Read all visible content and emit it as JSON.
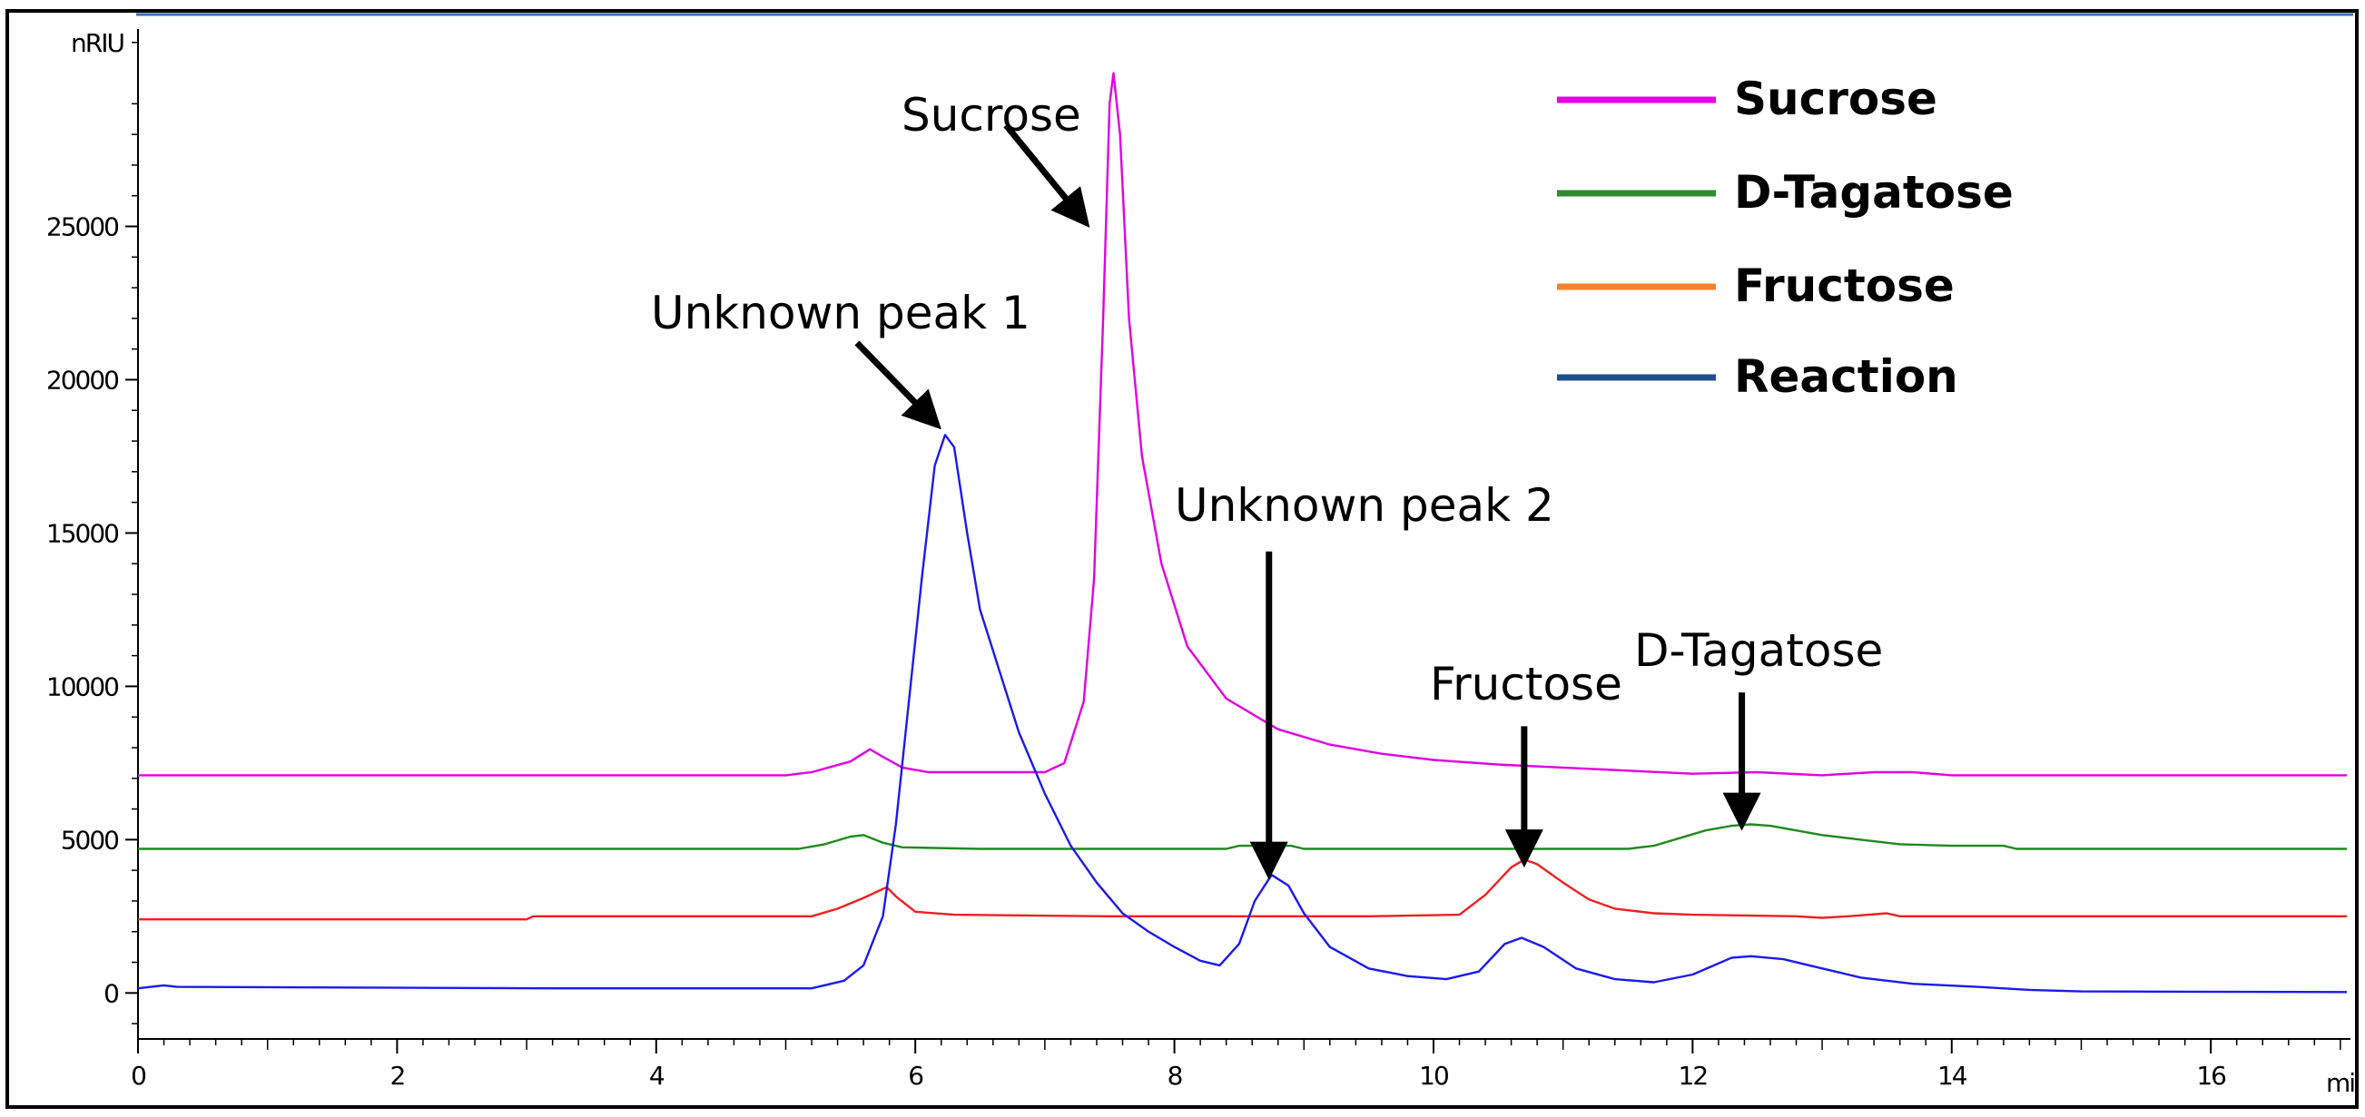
{
  "chart_data": {
    "type": "line",
    "xlabel_unit": "mi",
    "ylabel_unit": "nRIU",
    "xlim": [
      0,
      17.05
    ],
    "ylim": [
      -1500,
      31200
    ],
    "x_ticks": [
      0,
      2,
      4,
      6,
      8,
      10,
      12,
      14,
      16
    ],
    "y_ticks": [
      0,
      5000,
      10000,
      15000,
      20000,
      25000
    ],
    "legend_position": "top-right",
    "series": [
      {
        "name": "Sucrose",
        "color": "#e100e1",
        "legend_color": "#e600e6",
        "baseline": 7100,
        "points": [
          [
            0,
            7100
          ],
          [
            5.0,
            7100
          ],
          [
            5.2,
            7200
          ],
          [
            5.5,
            7550
          ],
          [
            5.65,
            7950
          ],
          [
            5.75,
            7700
          ],
          [
            5.9,
            7350
          ],
          [
            6.1,
            7200
          ],
          [
            7.0,
            7200
          ],
          [
            7.15,
            7500
          ],
          [
            7.3,
            9500
          ],
          [
            7.38,
            13500
          ],
          [
            7.45,
            22000
          ],
          [
            7.5,
            29000
          ],
          [
            7.53,
            30000
          ],
          [
            7.58,
            28000
          ],
          [
            7.65,
            22000
          ],
          [
            7.75,
            17500
          ],
          [
            7.9,
            14000
          ],
          [
            8.1,
            11300
          ],
          [
            8.4,
            9600
          ],
          [
            8.8,
            8600
          ],
          [
            9.2,
            8100
          ],
          [
            9.6,
            7800
          ],
          [
            10.0,
            7600
          ],
          [
            10.5,
            7450
          ],
          [
            11.0,
            7350
          ],
          [
            11.5,
            7250
          ],
          [
            12.0,
            7150
          ],
          [
            12.5,
            7200
          ],
          [
            13.0,
            7100
          ],
          [
            13.4,
            7200
          ],
          [
            13.7,
            7200
          ],
          [
            14.0,
            7100
          ],
          [
            17.05,
            7100
          ]
        ]
      },
      {
        "name": "D-Tagatose",
        "color": "#1f8a1f",
        "legend_color": "#2e8b2e",
        "baseline": 4700,
        "points": [
          [
            0,
            4700
          ],
          [
            5.1,
            4700
          ],
          [
            5.3,
            4850
          ],
          [
            5.5,
            5100
          ],
          [
            5.6,
            5150
          ],
          [
            5.75,
            4900
          ],
          [
            5.9,
            4750
          ],
          [
            6.5,
            4700
          ],
          [
            8.4,
            4700
          ],
          [
            8.5,
            4800
          ],
          [
            8.9,
            4800
          ],
          [
            9.0,
            4700
          ],
          [
            11.5,
            4700
          ],
          [
            11.7,
            4800
          ],
          [
            11.9,
            5050
          ],
          [
            12.1,
            5300
          ],
          [
            12.3,
            5450
          ],
          [
            12.45,
            5500
          ],
          [
            12.6,
            5450
          ],
          [
            12.8,
            5300
          ],
          [
            13.0,
            5150
          ],
          [
            13.3,
            5000
          ],
          [
            13.6,
            4850
          ],
          [
            14.0,
            4800
          ],
          [
            14.4,
            4800
          ],
          [
            14.5,
            4700
          ],
          [
            17.05,
            4700
          ]
        ]
      },
      {
        "name": "Fructose",
        "color": "#ef2020",
        "legend_color": "#f4822a",
        "baseline": 2400,
        "points": [
          [
            0,
            2400
          ],
          [
            3.0,
            2400
          ],
          [
            3.05,
            2500
          ],
          [
            5.2,
            2500
          ],
          [
            5.4,
            2750
          ],
          [
            5.6,
            3100
          ],
          [
            5.78,
            3450
          ],
          [
            5.85,
            3150
          ],
          [
            6.0,
            2650
          ],
          [
            6.3,
            2550
          ],
          [
            7.5,
            2500
          ],
          [
            8.5,
            2500
          ],
          [
            9.5,
            2500
          ],
          [
            10.2,
            2550
          ],
          [
            10.4,
            3200
          ],
          [
            10.6,
            4100
          ],
          [
            10.7,
            4350
          ],
          [
            10.8,
            4200
          ],
          [
            11.0,
            3600
          ],
          [
            11.2,
            3050
          ],
          [
            11.4,
            2750
          ],
          [
            11.7,
            2600
          ],
          [
            12.0,
            2550
          ],
          [
            12.8,
            2500
          ],
          [
            13.0,
            2450
          ],
          [
            13.2,
            2500
          ],
          [
            13.5,
            2600
          ],
          [
            13.6,
            2500
          ],
          [
            17.05,
            2500
          ]
        ]
      },
      {
        "name": "Reaction",
        "color": "#1a1aee",
        "legend_color": "#1f4e8c",
        "baseline": 150,
        "points": [
          [
            0,
            150
          ],
          [
            0.2,
            250
          ],
          [
            0.3,
            200
          ],
          [
            3.2,
            150
          ],
          [
            5.2,
            150
          ],
          [
            5.45,
            400
          ],
          [
            5.6,
            900
          ],
          [
            5.75,
            2500
          ],
          [
            5.85,
            5500
          ],
          [
            5.95,
            9500
          ],
          [
            6.05,
            13500
          ],
          [
            6.15,
            17200
          ],
          [
            6.23,
            18200
          ],
          [
            6.3,
            17800
          ],
          [
            6.4,
            15000
          ],
          [
            6.5,
            12500
          ],
          [
            6.65,
            10500
          ],
          [
            6.8,
            8500
          ],
          [
            7.0,
            6500
          ],
          [
            7.2,
            4800
          ],
          [
            7.4,
            3600
          ],
          [
            7.6,
            2600
          ],
          [
            7.8,
            2000
          ],
          [
            8.0,
            1500
          ],
          [
            8.2,
            1050
          ],
          [
            8.35,
            900
          ],
          [
            8.5,
            1600
          ],
          [
            8.62,
            3000
          ],
          [
            8.75,
            3850
          ],
          [
            8.88,
            3500
          ],
          [
            9.0,
            2600
          ],
          [
            9.2,
            1500
          ],
          [
            9.5,
            800
          ],
          [
            9.8,
            550
          ],
          [
            10.1,
            450
          ],
          [
            10.35,
            700
          ],
          [
            10.55,
            1600
          ],
          [
            10.68,
            1800
          ],
          [
            10.85,
            1500
          ],
          [
            11.1,
            800
          ],
          [
            11.4,
            450
          ],
          [
            11.7,
            350
          ],
          [
            12.0,
            600
          ],
          [
            12.3,
            1150
          ],
          [
            12.45,
            1200
          ],
          [
            12.7,
            1100
          ],
          [
            13.0,
            800
          ],
          [
            13.3,
            500
          ],
          [
            13.7,
            300
          ],
          [
            14.2,
            200
          ],
          [
            14.6,
            100
          ],
          [
            15.0,
            50
          ],
          [
            17.05,
            30
          ]
        ]
      }
    ],
    "annotations": [
      {
        "id": "sucrose",
        "text": "Sucrose",
        "tip": [
          7.3,
          25200
        ],
        "tail": [
          6.7,
          28300
        ]
      },
      {
        "id": "unknown-1",
        "text": "Unknown peak 1",
        "tip": [
          6.15,
          18600
        ],
        "tail": [
          5.55,
          21200
        ]
      },
      {
        "id": "unknown-2",
        "text": "Unknown peak 2",
        "tip": [
          8.73,
          4000
        ],
        "tail": [
          8.73,
          14400
        ]
      },
      {
        "id": "fructose",
        "text": "Fructose",
        "tip": [
          10.7,
          4400
        ],
        "tail": [
          10.7,
          8700
        ]
      },
      {
        "id": "tagatose",
        "text": "D-Tagatose",
        "tip": [
          12.38,
          5600
        ],
        "tail": [
          12.38,
          9800
        ]
      }
    ]
  },
  "legend": {
    "items": [
      {
        "label": "Sucrose"
      },
      {
        "label": "D-Tagatose"
      },
      {
        "label": "Fructose"
      },
      {
        "label": "Reaction"
      }
    ]
  },
  "labels": {
    "y_unit": "nRIU",
    "x_unit": "mi",
    "sucrose": "Sucrose",
    "unknown_1": "Unknown peak 1",
    "unknown_2": "Unknown peak 2",
    "fructose": "Fructose",
    "tagatose_prefix": "D",
    "tagatose_rest": "-Tagatose",
    "legend_sucrose": "Sucrose",
    "legend_tagatose_prefix": "D",
    "legend_tagatose_rest": "-Tagatose",
    "legend_fructose": "Fructose",
    "legend_reaction": "Reaction"
  }
}
